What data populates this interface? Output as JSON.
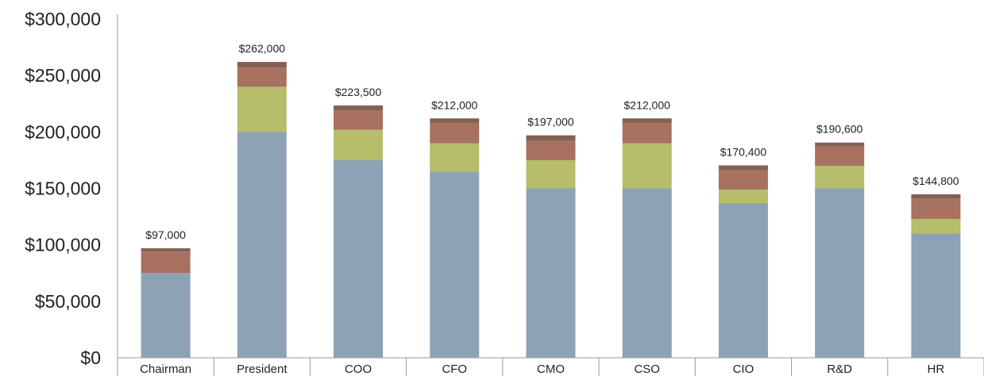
{
  "chart_data": {
    "type": "bar",
    "stacked": true,
    "categories": [
      "Chairman",
      "President",
      "COO",
      "CFO",
      "CMO",
      "CSO",
      "CIO",
      "R&D",
      "HR"
    ],
    "series": [
      {
        "color": "#8ea2b5",
        "values": [
          75000,
          200000,
          175000,
          165000,
          150000,
          150000,
          137000,
          150000,
          110000
        ]
      },
      {
        "color": "#b6bd6b",
        "values": [
          0,
          40000,
          27000,
          25000,
          25000,
          40000,
          12000,
          20000,
          13000
        ]
      },
      {
        "color": "#a7705f",
        "values": [
          19000,
          17000,
          17000,
          18000,
          17000,
          18000,
          17000,
          17000,
          18000
        ]
      },
      {
        "color": "#855f54",
        "values": [
          3000,
          5000,
          4500,
          4000,
          5000,
          4000,
          4400,
          3600,
          3800
        ]
      }
    ],
    "totals": [
      "$97,000",
      "$262,000",
      "$223,500",
      "$212,000",
      "$197,000",
      "$212,000",
      "$170,400",
      "$190,600",
      "$144,800"
    ],
    "yticks": [
      "$0",
      "$50,000",
      "$100,000",
      "$150,000",
      "$200,000",
      "$250,000",
      "$300,000"
    ],
    "ylim": [
      0,
      300000
    ],
    "grid": false,
    "legend": "none"
  }
}
